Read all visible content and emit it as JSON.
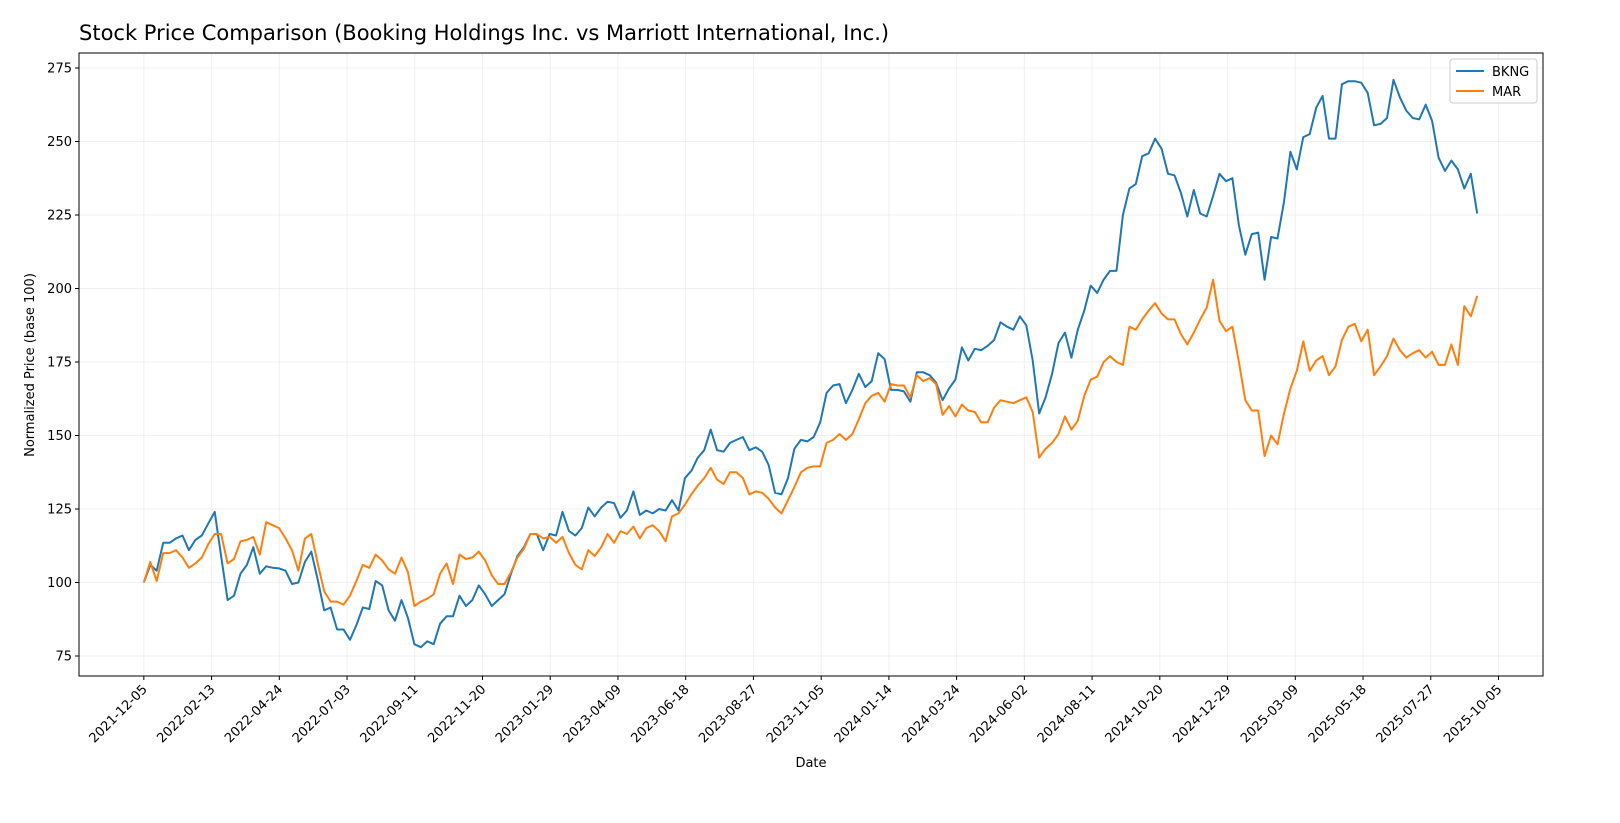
{
  "chart_data": {
    "type": "line",
    "title": "Stock Price Comparison (Booking Holdings Inc. vs Marriott International, Inc.)",
    "xlabel": "Date",
    "ylabel": "Normalized Price (base 100)",
    "x_start": "2021-12-05",
    "last_point_day_offset": 1378,
    "xlim_days": [
      -67,
      1446
    ],
    "ylim": [
      68.2,
      280.1
    ],
    "grid": true,
    "legend_position": "top-right",
    "x_ticks": [
      {
        "label": "2021-12-05",
        "day": 0
      },
      {
        "label": "2022-02-13",
        "day": 70
      },
      {
        "label": "2022-04-24",
        "day": 140
      },
      {
        "label": "2022-07-03",
        "day": 210
      },
      {
        "label": "2022-09-11",
        "day": 280
      },
      {
        "label": "2022-11-20",
        "day": 350
      },
      {
        "label": "2023-01-29",
        "day": 420
      },
      {
        "label": "2023-04-09",
        "day": 490
      },
      {
        "label": "2023-06-18",
        "day": 560
      },
      {
        "label": "2023-08-27",
        "day": 630
      },
      {
        "label": "2023-11-05",
        "day": 700
      },
      {
        "label": "2024-01-14",
        "day": 770
      },
      {
        "label": "2024-03-24",
        "day": 840
      },
      {
        "label": "2024-06-02",
        "day": 910
      },
      {
        "label": "2024-08-11",
        "day": 980
      },
      {
        "label": "2024-10-20",
        "day": 1050
      },
      {
        "label": "2024-12-29",
        "day": 1120
      },
      {
        "label": "2025-03-09",
        "day": 1190
      },
      {
        "label": "2025-05-18",
        "day": 1260
      },
      {
        "label": "2025-07-27",
        "day": 1330
      },
      {
        "label": "2025-10-05",
        "day": 1400
      }
    ],
    "y_ticks": [
      {
        "label": "75",
        "value": 75
      },
      {
        "label": "100",
        "value": 100
      },
      {
        "label": "125",
        "value": 125
      },
      {
        "label": "150",
        "value": 150
      },
      {
        "label": "175",
        "value": 175
      },
      {
        "label": "200",
        "value": 200
      },
      {
        "label": "225",
        "value": 225
      },
      {
        "label": "250",
        "value": 250
      },
      {
        "label": "275",
        "value": 275
      }
    ],
    "series": [
      {
        "name": "BKNG",
        "color": "#1f77b4",
        "values": [
          100,
          106,
          104,
          113.5,
          113.5,
          115,
          116,
          111,
          114.5,
          116,
          120,
          124,
          109,
          94,
          95.5,
          103,
          106,
          112,
          103,
          105.5,
          105,
          104.8,
          104,
          99.5,
          100,
          107,
          110.5,
          101,
          90.5,
          91.5,
          84,
          84,
          80.5,
          85.5,
          91.5,
          91,
          100.5,
          99,
          90.5,
          87,
          94,
          88,
          79,
          78,
          80,
          79,
          86,
          88.5,
          88.5,
          95.5,
          92,
          94,
          99,
          96,
          92,
          94,
          96,
          103,
          109,
          112,
          116.5,
          116.5,
          111,
          116.5,
          116,
          124,
          117.5,
          116,
          118.5,
          125.5,
          122.5,
          125.5,
          127.5,
          127,
          122,
          124.5,
          131,
          123,
          124.5,
          123.5,
          125,
          124.5,
          128,
          124.5,
          135.5,
          138,
          142.5,
          145,
          152,
          145,
          144.5,
          147.5,
          148.5,
          149.5,
          145,
          146,
          144.5,
          140,
          130.5,
          130,
          135.5,
          145.5,
          148.5,
          148,
          149.5,
          154.5,
          164.5,
          167,
          167.5,
          161,
          165.5,
          171,
          166.5,
          168.5,
          178,
          176,
          165.5,
          165.5,
          165,
          161.5,
          171.5,
          171.5,
          170.5,
          168,
          162,
          166,
          169,
          180,
          175.5,
          179.5,
          179,
          180.5,
          182.5,
          188.5,
          187,
          186,
          190.5,
          187.5,
          175.5,
          157.5,
          163,
          171,
          181.5,
          185,
          176.5,
          186,
          192.5,
          201,
          198.5,
          203,
          206,
          206,
          225,
          234,
          235.5,
          245,
          246,
          251,
          247.5,
          239,
          238.5,
          232.5,
          224.5,
          233.5,
          225.5,
          224.5,
          231.5,
          239,
          236.5,
          237.5,
          221.5,
          211.5,
          218.5,
          219,
          203,
          217.5,
          217,
          229.5,
          246.5,
          240.5,
          251.5,
          252.5,
          261.5,
          265.5,
          251,
          251,
          269.5,
          270.5,
          270.5,
          270,
          266.5,
          255.5,
          256,
          258,
          271,
          265,
          260.5,
          258,
          257.5,
          262.5,
          257,
          244.5,
          240,
          243.5,
          240.5,
          234,
          239,
          225.5
        ]
      },
      {
        "name": "MAR",
        "color": "#ff7f0e",
        "values": [
          100,
          107,
          100.5,
          110,
          110,
          111,
          108.5,
          105,
          106.5,
          108.5,
          113,
          116.5,
          116.5,
          106.5,
          108,
          114,
          114.5,
          115.5,
          109.5,
          120.5,
          119.5,
          118.5,
          115,
          111,
          104,
          115,
          116.5,
          106.5,
          97,
          93.5,
          93.5,
          92.5,
          95.5,
          100.5,
          106,
          105,
          109.5,
          107.5,
          104.5,
          103,
          108.5,
          103.5,
          92,
          93.5,
          94.5,
          96,
          103,
          106.5,
          99.5,
          109.5,
          108,
          108.5,
          110.5,
          107.5,
          102.5,
          99.5,
          99.5,
          103.5,
          108.5,
          111.5,
          116.5,
          116.5,
          115,
          115.5,
          113.5,
          115.5,
          110,
          106,
          104.5,
          111,
          109,
          112,
          116.5,
          113.5,
          117.5,
          116.5,
          119,
          115,
          118.5,
          119.5,
          117.5,
          114,
          122.5,
          123.5,
          126.5,
          130,
          133,
          135.5,
          139,
          135,
          133.5,
          137.5,
          137.5,
          135.5,
          130,
          131,
          130.5,
          128.5,
          125.5,
          123.5,
          128,
          132.5,
          137.5,
          139,
          139.5,
          139.5,
          147.5,
          148.5,
          150.5,
          148.5,
          150.5,
          155.5,
          161,
          163.5,
          164.5,
          161.5,
          167.5,
          167,
          167,
          163,
          170.5,
          168.5,
          169.5,
          167.5,
          157,
          160,
          156.5,
          160.5,
          158.5,
          158,
          154.5,
          154.5,
          159.5,
          162,
          161.5,
          161,
          162,
          163,
          158,
          142.5,
          145.5,
          147.5,
          150.5,
          156.5,
          152,
          155,
          163.5,
          169,
          170,
          175,
          177,
          175,
          174,
          187,
          186,
          189.5,
          192.5,
          195,
          191.5,
          189.5,
          189.5,
          184.5,
          181,
          185,
          189.5,
          193.5,
          203,
          189,
          185.5,
          187,
          175,
          162,
          158.5,
          158.5,
          143,
          150,
          147,
          157.5,
          166,
          172,
          182,
          172,
          175.5,
          177,
          170.5,
          173.5,
          182.5,
          187,
          188,
          182,
          186,
          170.5,
          173.5,
          177,
          183,
          179,
          176.5,
          178,
          179,
          176.5,
          178.5,
          174,
          174,
          181,
          174,
          194,
          190.5,
          197.5
        ]
      }
    ]
  }
}
